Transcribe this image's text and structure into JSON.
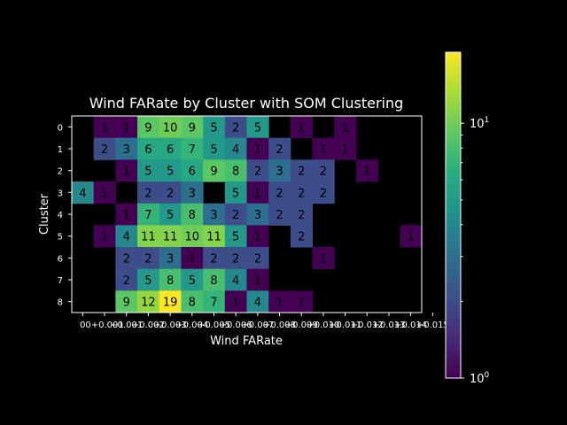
{
  "chart_data": {
    "type": "heatmap",
    "title": "Wind FARate by Cluster with SOM Clustering",
    "xlabel": "Wind FARate",
    "ylabel": "Cluster",
    "x_tick_labels": [
      "0",
      "0+0.001",
      "+0.001",
      "+0.002",
      "+0.003",
      "+0.004",
      "+0.005",
      "+0.006",
      "+0.007",
      "+0.008",
      "+0.009",
      "+0.010",
      "+0.011",
      "+0.012",
      "+0.013",
      "+0.014",
      "+0.015"
    ],
    "y_tick_labels": [
      "0",
      "1",
      "2",
      "3",
      "4",
      "5",
      "6",
      "7",
      "8"
    ],
    "n_cols": 16,
    "n_rows": 9,
    "cells": [
      [
        1,
        1,
        1
      ],
      [
        1,
        2,
        1
      ],
      [
        1,
        3,
        9
      ],
      [
        1,
        4,
        10
      ],
      [
        1,
        5,
        9
      ],
      [
        1,
        6,
        5
      ],
      [
        1,
        7,
        2
      ],
      [
        1,
        8,
        5
      ],
      [
        1,
        10,
        1
      ],
      [
        1,
        12,
        1
      ],
      [
        2,
        1,
        2
      ],
      [
        2,
        2,
        3
      ],
      [
        2,
        3,
        6
      ],
      [
        2,
        4,
        6
      ],
      [
        2,
        5,
        7
      ],
      [
        2,
        6,
        5
      ],
      [
        2,
        7,
        4
      ],
      [
        2,
        8,
        1
      ],
      [
        2,
        9,
        2
      ],
      [
        2,
        11,
        1
      ],
      [
        2,
        12,
        1
      ],
      [
        3,
        2,
        1
      ],
      [
        3,
        3,
        5
      ],
      [
        3,
        4,
        5
      ],
      [
        3,
        5,
        6
      ],
      [
        3,
        6,
        9
      ],
      [
        3,
        7,
        8
      ],
      [
        3,
        8,
        2
      ],
      [
        3,
        9,
        3
      ],
      [
        3,
        10,
        2
      ],
      [
        3,
        11,
        2
      ],
      [
        3,
        13,
        1
      ],
      [
        4,
        0,
        4
      ],
      [
        4,
        1,
        1
      ],
      [
        4,
        3,
        2
      ],
      [
        4,
        4,
        2
      ],
      [
        4,
        5,
        3
      ],
      [
        4,
        7,
        5
      ],
      [
        4,
        8,
        1
      ],
      [
        4,
        9,
        2
      ],
      [
        4,
        10,
        2
      ],
      [
        4,
        11,
        2
      ],
      [
        5,
        2,
        1
      ],
      [
        5,
        3,
        7
      ],
      [
        5,
        4,
        5
      ],
      [
        5,
        5,
        8
      ],
      [
        5,
        6,
        3
      ],
      [
        5,
        7,
        2
      ],
      [
        5,
        8,
        3
      ],
      [
        5,
        9,
        2
      ],
      [
        5,
        10,
        2
      ],
      [
        6,
        1,
        1
      ],
      [
        6,
        2,
        4
      ],
      [
        6,
        3,
        11
      ],
      [
        6,
        4,
        11
      ],
      [
        6,
        5,
        10
      ],
      [
        6,
        6,
        11
      ],
      [
        6,
        7,
        5
      ],
      [
        6,
        8,
        1
      ],
      [
        6,
        10,
        2
      ],
      [
        6,
        15,
        1
      ],
      [
        7,
        2,
        2
      ],
      [
        7,
        3,
        2
      ],
      [
        7,
        4,
        3
      ],
      [
        7,
        5,
        1
      ],
      [
        7,
        6,
        2
      ],
      [
        7,
        7,
        2
      ],
      [
        7,
        8,
        2
      ],
      [
        7,
        11,
        1
      ],
      [
        8,
        2,
        2
      ],
      [
        8,
        3,
        5
      ],
      [
        8,
        4,
        8
      ],
      [
        8,
        5,
        5
      ],
      [
        8,
        6,
        8
      ],
      [
        8,
        7,
        4
      ],
      [
        8,
        8,
        1
      ],
      [
        9,
        2,
        9
      ],
      [
        9,
        3,
        12
      ],
      [
        9,
        4,
        19
      ],
      [
        9,
        5,
        8
      ],
      [
        9,
        6,
        7
      ],
      [
        9,
        7,
        1
      ],
      [
        9,
        8,
        4
      ],
      [
        9,
        9,
        1
      ],
      [
        9,
        10,
        1
      ]
    ],
    "color_scale": "log",
    "colormap": "viridis",
    "vmin": 1,
    "vmax": 19,
    "colorbar_ticks": [
      {
        "value": 1,
        "base": "10",
        "exp": "0"
      },
      {
        "value": 10,
        "base": "10",
        "exp": "1"
      }
    ],
    "background": "#000000"
  }
}
